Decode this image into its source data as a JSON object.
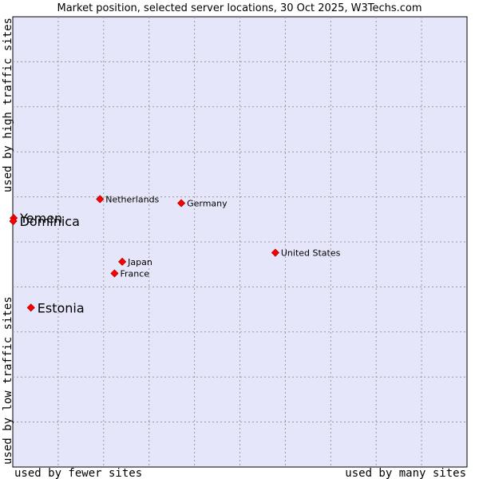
{
  "chart_data": {
    "type": "scatter",
    "title": "Market position, selected server locations, 30 Oct 2025, W3Techs.com",
    "xlabel_left": "used by fewer sites",
    "xlabel_right": "used by many sites",
    "ylabel_top": "used by high traffic sites",
    "ylabel_bottom": "used by low traffic sites",
    "xlim": [
      0,
      100
    ],
    "ylim": [
      0,
      100
    ],
    "grid": true,
    "point_color": "#ff0000",
    "plot_background": "#e6e6fa",
    "points": [
      {
        "label": "Yemen",
        "x": 0.2,
        "y": 55.3,
        "emphasis": true
      },
      {
        "label": "Dominica",
        "x": 0.1,
        "y": 54.6,
        "emphasis": true
      },
      {
        "label": "Estonia",
        "x": 4.0,
        "y": 35.4,
        "emphasis": true
      },
      {
        "label": "Netherlands",
        "x": 19.2,
        "y": 59.5,
        "emphasis": false
      },
      {
        "label": "Germany",
        "x": 37.1,
        "y": 58.6,
        "emphasis": false
      },
      {
        "label": "United States",
        "x": 57.8,
        "y": 47.6,
        "emphasis": false
      },
      {
        "label": "Japan",
        "x": 24.1,
        "y": 45.6,
        "emphasis": false
      },
      {
        "label": "France",
        "x": 22.4,
        "y": 43.0,
        "emphasis": false
      }
    ]
  }
}
